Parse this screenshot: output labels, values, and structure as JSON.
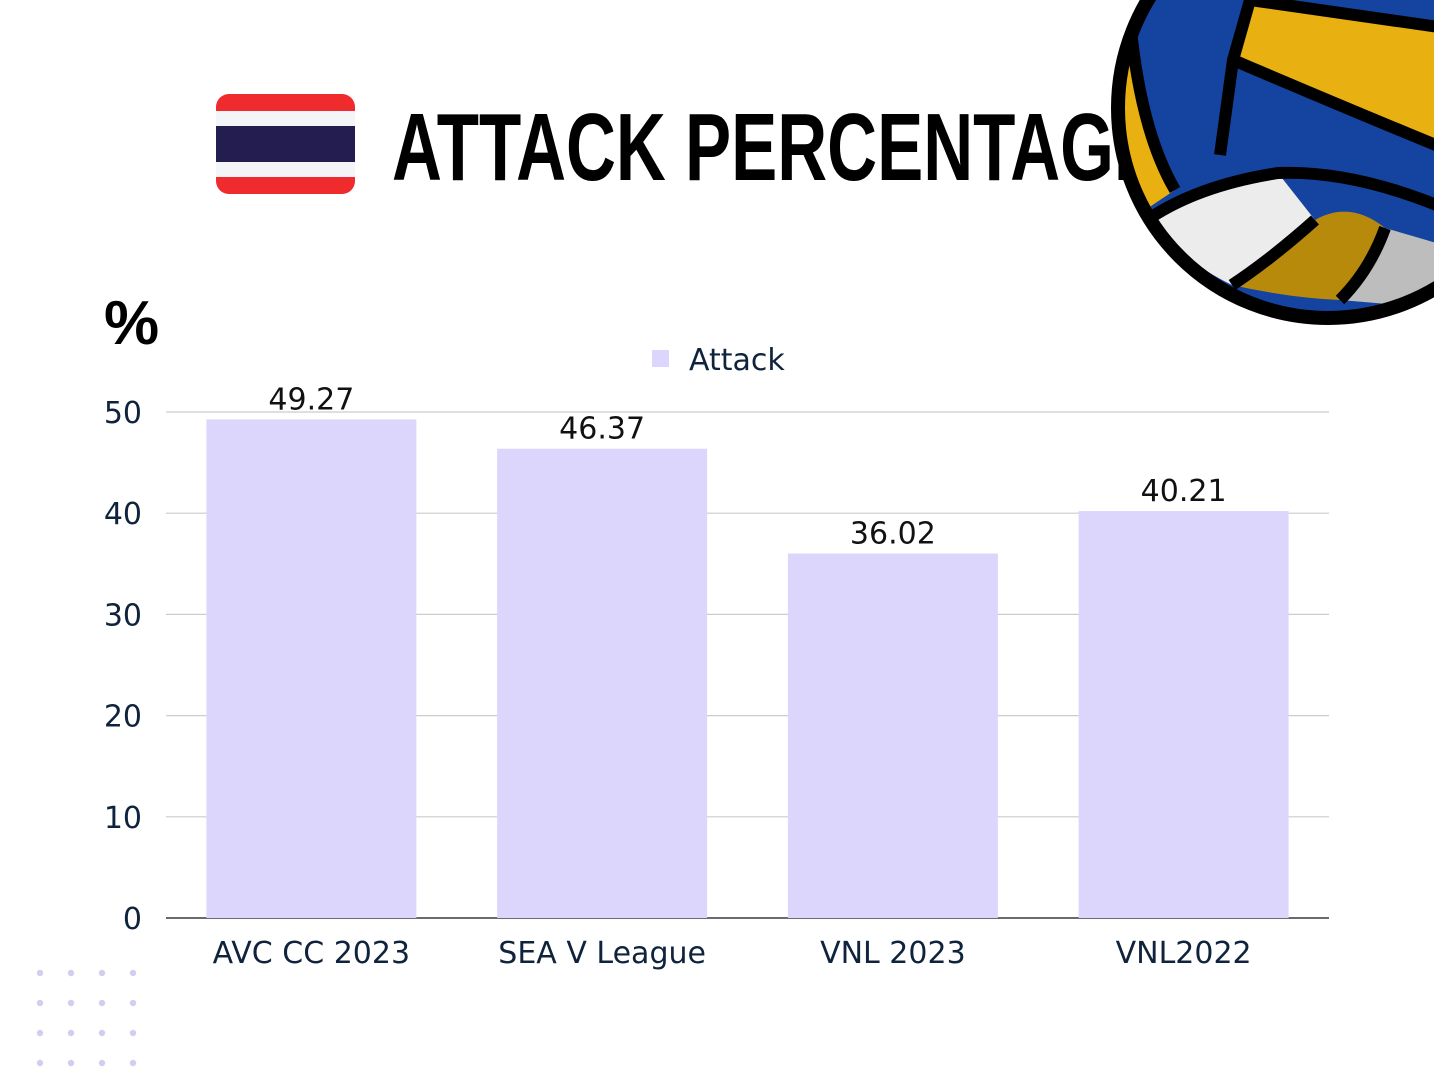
{
  "header": {
    "title": "ATTACK PERCENTAGE",
    "unit_label": "%",
    "flag_icon": "thailand-flag-icon",
    "ball_icon": "volleyball-icon"
  },
  "colors": {
    "bar": "#dcd6fd",
    "flag_red": "#ef2b2d",
    "flag_white": "#f4f5f8",
    "flag_blue": "#241d4f",
    "ball_blue": "#1543a0",
    "ball_yellow": "#e8b010",
    "ball_white": "#ececec",
    "dot": "#cfd0ee"
  },
  "chart_data": {
    "type": "bar",
    "categories": [
      "AVC CC 2023",
      "SEA V League",
      "VNL 2023",
      "VNL2022"
    ],
    "series": [
      {
        "name": "Attack",
        "values": [
          49.27,
          46.37,
          36.02,
          40.21
        ]
      }
    ],
    "value_labels": [
      "49.27",
      "46.37",
      "36.02",
      "40.21"
    ],
    "y_ticks": [
      "0",
      "10",
      "20",
      "30",
      "40",
      "50"
    ],
    "ylim": [
      0,
      50
    ],
    "grid": true,
    "legend": "top-center"
  }
}
